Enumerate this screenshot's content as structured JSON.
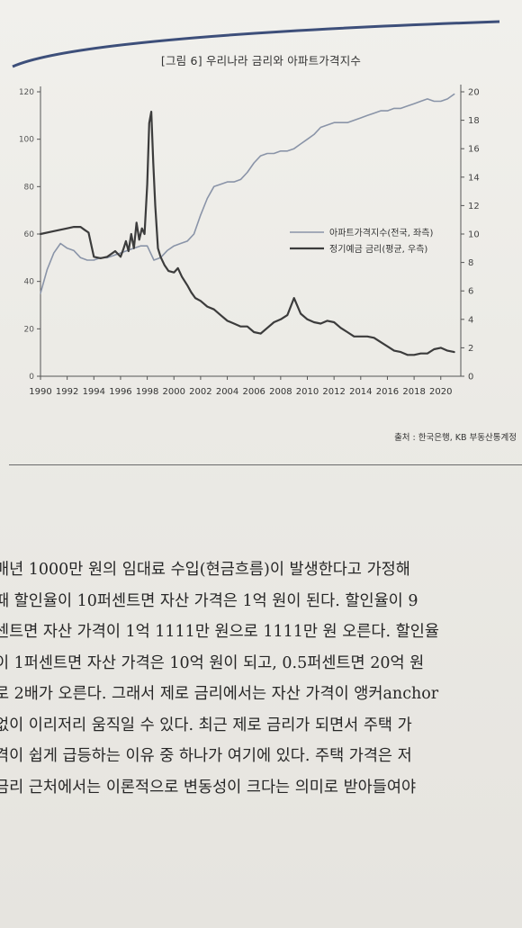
{
  "chart_title": "[그림 6] 우리나라 금리와 아파트가격지수",
  "source": "출처 : 한국은행, KB 부동산통계정",
  "chart_data": {
    "type": "line",
    "title": "[그림 6] 우리나라 금리와 아파트가격지수",
    "x_ticks": [
      "1990",
      "1992",
      "1994",
      "1996",
      "1998",
      "2000",
      "2002",
      "2004",
      "2006",
      "2008",
      "2010",
      "2012",
      "2014",
      "2016",
      "2018",
      "2020"
    ],
    "xlim": [
      1990,
      2021.5
    ],
    "left_axis": {
      "ticks": [
        0,
        20,
        40,
        60,
        80,
        100,
        120
      ],
      "ylim": [
        0,
        120
      ]
    },
    "right_axis": {
      "ticks": [
        0,
        2,
        4,
        6,
        8,
        10,
        12,
        14,
        16,
        18,
        20
      ],
      "ylim": [
        0,
        20
      ]
    },
    "legend_position": "right-middle",
    "series": [
      {
        "name": "아파트가격지수(전국, 좌측)",
        "axis": "left",
        "color": "#8a94a8",
        "x": [
          1990,
          1990.5,
          1991,
          1991.5,
          1992,
          1992.5,
          1993,
          1993.5,
          1994,
          1994.5,
          1995,
          1995.5,
          1996,
          1996.5,
          1997,
          1997.5,
          1998,
          1998.5,
          1999,
          1999.5,
          2000,
          2000.5,
          2001,
          2001.5,
          2002,
          2002.5,
          2003,
          2003.5,
          2004,
          2004.5,
          2005,
          2005.5,
          2006,
          2006.5,
          2007,
          2007.5,
          2008,
          2008.5,
          2009,
          2009.5,
          2010,
          2010.5,
          2011,
          2011.5,
          2012,
          2012.5,
          2013,
          2013.5,
          2014,
          2014.5,
          2015,
          2015.5,
          2016,
          2016.5,
          2017,
          2017.5,
          2018,
          2018.5,
          2019,
          2019.5,
          2020,
          2020.5,
          2021
        ],
        "y": [
          35,
          45,
          52,
          56,
          54,
          53,
          50,
          49,
          49,
          50,
          50,
          51,
          52,
          53,
          54,
          55,
          55,
          49,
          50,
          53,
          55,
          56,
          57,
          60,
          68,
          75,
          80,
          81,
          82,
          82,
          83,
          86,
          90,
          93,
          94,
          94,
          95,
          95,
          96,
          98,
          100,
          102,
          105,
          106,
          107,
          107,
          107,
          108,
          109,
          110,
          111,
          112,
          112,
          113,
          113,
          114,
          115,
          116,
          117,
          116,
          116,
          117,
          119
        ]
      },
      {
        "name": "정기예금 금리(평균, 우측)",
        "axis": "right",
        "color": "#3c3c3c",
        "x": [
          1990,
          1991,
          1992,
          1992.5,
          1993,
          1993.3,
          1993.6,
          1994,
          1994.5,
          1995,
          1995.3,
          1995.6,
          1996,
          1996.2,
          1996.4,
          1996.6,
          1996.8,
          1997,
          1997.2,
          1997.4,
          1997.6,
          1997.8,
          1998,
          1998.15,
          1998.3,
          1998.45,
          1998.6,
          1998.8,
          1999,
          1999.3,
          1999.6,
          2000,
          2000.3,
          2000.6,
          2001,
          2001.3,
          2001.6,
          2002,
          2002.5,
          2003,
          2003.5,
          2004,
          2004.5,
          2005,
          2005.5,
          2006,
          2006.5,
          2007,
          2007.5,
          2008,
          2008.5,
          2009,
          2009.5,
          2010,
          2010.5,
          2011,
          2011.5,
          2012,
          2012.5,
          2013,
          2013.5,
          2014,
          2014.5,
          2015,
          2015.5,
          2016,
          2016.5,
          2017,
          2017.5,
          2018,
          2018.5,
          2019,
          2019.5,
          2020,
          2020.5,
          2021
        ],
        "y": [
          10,
          10.2,
          10.4,
          10.5,
          10.5,
          10.3,
          10.1,
          8.4,
          8.3,
          8.4,
          8.6,
          8.8,
          8.4,
          8.9,
          9.5,
          8.8,
          10.0,
          9.0,
          10.8,
          9.6,
          10.4,
          10.0,
          13.5,
          17.8,
          18.6,
          15.0,
          12.0,
          9.0,
          8.4,
          7.8,
          7.4,
          7.3,
          7.6,
          7.0,
          6.4,
          5.9,
          5.5,
          5.3,
          4.9,
          4.7,
          4.3,
          3.9,
          3.7,
          3.5,
          3.5,
          3.1,
          3.0,
          3.4,
          3.8,
          4.0,
          4.3,
          5.5,
          4.4,
          4.0,
          3.8,
          3.7,
          3.9,
          3.8,
          3.4,
          3.1,
          2.8,
          2.8,
          2.8,
          2.7,
          2.4,
          2.1,
          1.8,
          1.7,
          1.5,
          1.5,
          1.6,
          1.6,
          1.9,
          2.0,
          1.8,
          1.7
        ]
      }
    ]
  },
  "body_lines": [
    "매년 1000만 원의 임대료 수입(현금흐름)이 발생한다고 가정해",
    "때 할인율이 10퍼센트면 자산 가격은 1억 원이 된다. 할인율이 9",
    "센트면 자산 가격이 1억 1111만 원으로 1111만 원 오른다. 할인율",
    "이 1퍼센트면 자산 가격은 10억 원이 되고, 0.5퍼센트면 20억 원",
    "로 2배가 오른다. 그래서 제로 금리에서는 자산 가격이 앵커anchor",
    "없이 이리저리 움직일 수 있다. 최근 제로 금리가 되면서 주택 가",
    "격이 쉽게 급등하는 이유 중 하나가 여기에 있다. 주택 가격은 저",
    "금리 근처에서는 이론적으로 변동성이 크다는 의미로 받아들여야"
  ]
}
